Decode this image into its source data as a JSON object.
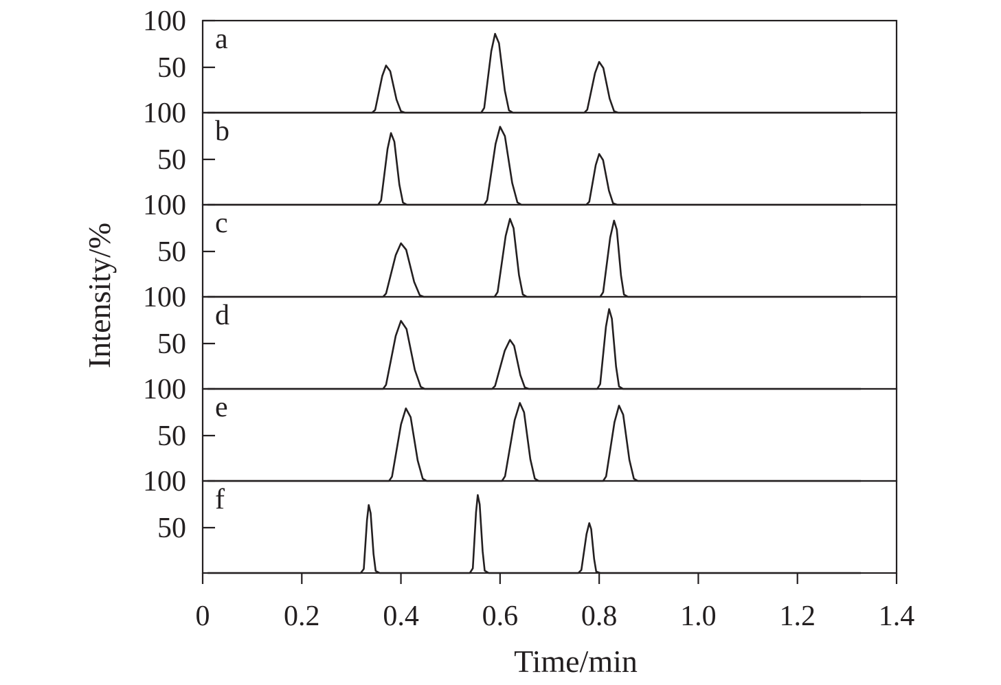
{
  "chart_data": {
    "type": "line",
    "xlabel": "Time/min",
    "ylabel": "Intensity/%",
    "xlim": [
      0,
      1.4
    ],
    "ylim": [
      0,
      100
    ],
    "x_ticks": [
      {
        "value": 0,
        "label": "0"
      },
      {
        "value": 0.2,
        "label": "0.2"
      },
      {
        "value": 0.4,
        "label": "0.4"
      },
      {
        "value": 0.6,
        "label": "0.6"
      },
      {
        "value": 0.8,
        "label": "0.8"
      },
      {
        "value": 1.0,
        "label": "1.0"
      },
      {
        "value": 1.2,
        "label": "1.2"
      },
      {
        "value": 1.4,
        "label": "1.4"
      }
    ],
    "y_ticks": [
      {
        "value": 50,
        "label": "50"
      },
      {
        "value": 100,
        "label": "100"
      }
    ],
    "grid": false,
    "panels": [
      {
        "label": "a",
        "peaks": [
          {
            "center": 0.37,
            "height": 52,
            "rise": 0.022,
            "fall": 0.03
          },
          {
            "center": 0.59,
            "height": 87,
            "rise": 0.022,
            "fall": 0.028
          },
          {
            "center": 0.8,
            "height": 56,
            "rise": 0.024,
            "fall": 0.03
          }
        ]
      },
      {
        "label": "b",
        "peaks": [
          {
            "center": 0.38,
            "height": 79,
            "rise": 0.02,
            "fall": 0.024
          },
          {
            "center": 0.6,
            "height": 86,
            "rise": 0.026,
            "fall": 0.035
          },
          {
            "center": 0.8,
            "height": 56,
            "rise": 0.02,
            "fall": 0.028
          }
        ]
      },
      {
        "label": "c",
        "peaks": [
          {
            "center": 0.4,
            "height": 59,
            "rise": 0.03,
            "fall": 0.038
          },
          {
            "center": 0.62,
            "height": 86,
            "rise": 0.025,
            "fall": 0.026
          },
          {
            "center": 0.83,
            "height": 84,
            "rise": 0.022,
            "fall": 0.02
          }
        ]
      },
      {
        "label": "d",
        "peaks": [
          {
            "center": 0.4,
            "height": 75,
            "rise": 0.03,
            "fall": 0.04
          },
          {
            "center": 0.62,
            "height": 54,
            "rise": 0.03,
            "fall": 0.03
          },
          {
            "center": 0.82,
            "height": 88,
            "rise": 0.018,
            "fall": 0.02
          }
        ]
      },
      {
        "label": "e",
        "peaks": [
          {
            "center": 0.41,
            "height": 80,
            "rise": 0.028,
            "fall": 0.034
          },
          {
            "center": 0.64,
            "height": 86,
            "rise": 0.03,
            "fall": 0.03
          },
          {
            "center": 0.84,
            "height": 83,
            "rise": 0.026,
            "fall": 0.03
          }
        ]
      },
      {
        "label": "f",
        "peaks": [
          {
            "center": 0.335,
            "height": 75,
            "rise": 0.01,
            "fall": 0.014
          },
          {
            "center": 0.555,
            "height": 86,
            "rise": 0.01,
            "fall": 0.014
          },
          {
            "center": 0.78,
            "height": 55,
            "rise": 0.016,
            "fall": 0.014
          }
        ]
      }
    ]
  }
}
